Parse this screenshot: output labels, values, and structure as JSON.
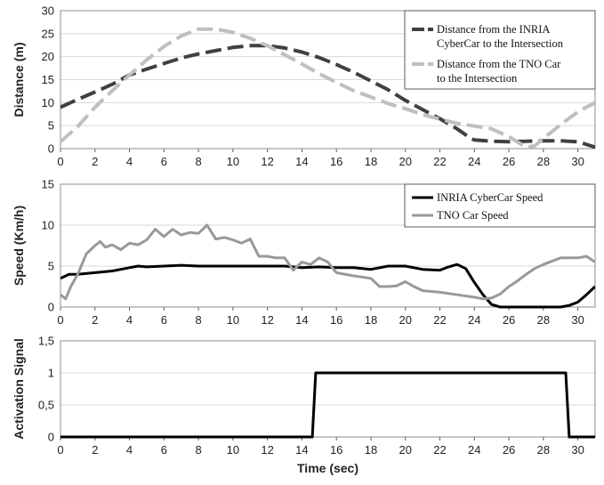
{
  "chart_data": [
    {
      "type": "line",
      "ylabel": "Distance (m)",
      "xlim": [
        0,
        31
      ],
      "ylim": [
        0,
        30
      ],
      "xticks": [
        "0",
        "2",
        "4",
        "6",
        "8",
        "10",
        "12",
        "14",
        "16",
        "18",
        "20",
        "22",
        "24",
        "26",
        "28",
        "30"
      ],
      "yticks": [
        "0",
        "5",
        "10",
        "15",
        "20",
        "25",
        "30"
      ],
      "legend": "top-right",
      "series": [
        {
          "name_lines": [
            "Distance from the INRIA",
            "CyberCar to the Intersection"
          ],
          "color": "#404040",
          "style": "long-dash",
          "x": [
            0,
            1,
            2,
            3,
            4,
            5,
            6,
            7,
            8,
            9,
            10,
            11,
            12,
            13,
            14,
            15,
            16,
            17,
            18,
            19,
            20,
            21,
            22,
            23,
            23.8,
            24,
            25,
            26,
            27,
            28,
            29,
            30,
            31
          ],
          "y": [
            9,
            10.7,
            12.3,
            14,
            16,
            17.3,
            18.5,
            19.7,
            20.6,
            21.3,
            22,
            22.4,
            22.4,
            21.9,
            21,
            19.8,
            18.3,
            16.6,
            14.7,
            12.8,
            10.5,
            8.5,
            6.5,
            4.3,
            2.2,
            1.9,
            1.6,
            1.5,
            1.6,
            1.7,
            1.7,
            1.5,
            0.3
          ]
        },
        {
          "name_lines": [
            "Distance from the TNO Car",
            "to the Intersection"
          ],
          "color": "#bfbfbf",
          "style": "long-dash",
          "x": [
            0,
            1,
            2,
            3,
            4,
            5,
            6,
            7,
            8,
            9,
            10,
            11,
            12,
            13,
            14,
            15,
            16,
            17,
            18,
            19,
            20,
            21,
            22,
            23,
            24,
            25,
            26,
            27,
            27.5,
            28,
            29,
            30,
            31
          ],
          "y": [
            1.5,
            4.8,
            9,
            12.6,
            16,
            19.3,
            22.2,
            24.5,
            26,
            26,
            25.3,
            24,
            22.4,
            20.4,
            18.4,
            16.3,
            14.4,
            12.6,
            11.2,
            9.8,
            8.7,
            7.4,
            6.4,
            5.5,
            4.9,
            4.3,
            2.6,
            0.3,
            0.6,
            2.2,
            5.2,
            8,
            10
          ]
        }
      ]
    },
    {
      "type": "line",
      "ylabel": "Speed (Km/h)",
      "xlim": [
        0,
        31
      ],
      "ylim": [
        0,
        15
      ],
      "xticks": [
        "0",
        "2",
        "4",
        "6",
        "8",
        "10",
        "12",
        "14",
        "16",
        "18",
        "20",
        "22",
        "24",
        "26",
        "28",
        "30"
      ],
      "yticks": [
        "0",
        "5",
        "10",
        "15"
      ],
      "legend": "top-right",
      "series": [
        {
          "name_lines": [
            "INRIA CyberCar Speed"
          ],
          "color": "#000000",
          "style": "solid",
          "x": [
            0,
            0.5,
            1,
            2,
            3,
            4,
            4.5,
            5,
            6,
            7,
            8,
            9,
            10,
            11,
            12,
            13,
            14,
            15,
            16,
            17,
            18,
            19,
            20,
            21,
            22,
            22.5,
            23,
            23.5,
            24,
            24.5,
            25,
            25.5,
            26,
            27,
            28,
            29,
            29.5,
            30,
            30.5,
            31
          ],
          "y": [
            3.5,
            4,
            4,
            4.2,
            4.4,
            4.8,
            5,
            4.9,
            5,
            5.1,
            5,
            5,
            5,
            5,
            5,
            5,
            4.8,
            4.9,
            4.8,
            4.8,
            4.6,
            5,
            5,
            4.6,
            4.5,
            4.9,
            5.2,
            4.7,
            3,
            1.5,
            0.3,
            0,
            0,
            0,
            0,
            0,
            0.2,
            0.6,
            1.5,
            2.5
          ]
        },
        {
          "name_lines": [
            "TNO Car Speed"
          ],
          "color": "#999999",
          "style": "solid",
          "x": [
            0,
            0.3,
            0.6,
            1,
            1.5,
            2,
            2.3,
            2.6,
            3,
            3.5,
            4,
            4.5,
            5,
            5.5,
            6,
            6.5,
            7,
            7.5,
            8,
            8.5,
            9,
            9.5,
            10,
            10.5,
            11,
            11.5,
            12,
            12.5,
            13,
            13.5,
            14,
            14.5,
            15,
            15.5,
            16,
            17,
            18,
            18.5,
            19,
            19.5,
            20,
            20.5,
            21,
            22,
            23,
            24,
            24.5,
            25,
            25.5,
            26,
            26.5,
            27,
            27.5,
            28,
            29,
            29.5,
            30,
            30.5,
            31
          ],
          "y": [
            1.5,
            1,
            2.5,
            4,
            6.5,
            7.5,
            8,
            7.3,
            7.6,
            7,
            7.8,
            7.6,
            8.2,
            9.5,
            8.6,
            9.5,
            8.8,
            9.1,
            9,
            10,
            8.3,
            8.5,
            8.2,
            7.8,
            8.3,
            6.2,
            6.2,
            6,
            6,
            4.5,
            5.5,
            5.2,
            6,
            5.5,
            4.2,
            3.8,
            3.5,
            2.5,
            2.5,
            2.6,
            3.1,
            2.5,
            2,
            1.8,
            1.5,
            1.2,
            1,
            1.1,
            1.6,
            2.5,
            3.2,
            4,
            4.7,
            5.2,
            6,
            6,
            6,
            6.2,
            5.5
          ]
        }
      ]
    },
    {
      "type": "line",
      "ylabel": "Activation Signal",
      "xlabel": "Time (sec)",
      "xlim": [
        0,
        31
      ],
      "ylim": [
        0,
        1.5
      ],
      "xticks": [
        "0",
        "2",
        "4",
        "6",
        "8",
        "10",
        "12",
        "14",
        "16",
        "18",
        "20",
        "22",
        "24",
        "26",
        "28",
        "30"
      ],
      "yticks": [
        "0",
        "0,5",
        "1",
        "1,5"
      ],
      "series": [
        {
          "color": "#000000",
          "style": "solid",
          "x": [
            0,
            14.6,
            14.8,
            29.3,
            29.5,
            31
          ],
          "y": [
            0,
            0,
            1,
            1,
            0,
            0
          ]
        }
      ]
    }
  ]
}
